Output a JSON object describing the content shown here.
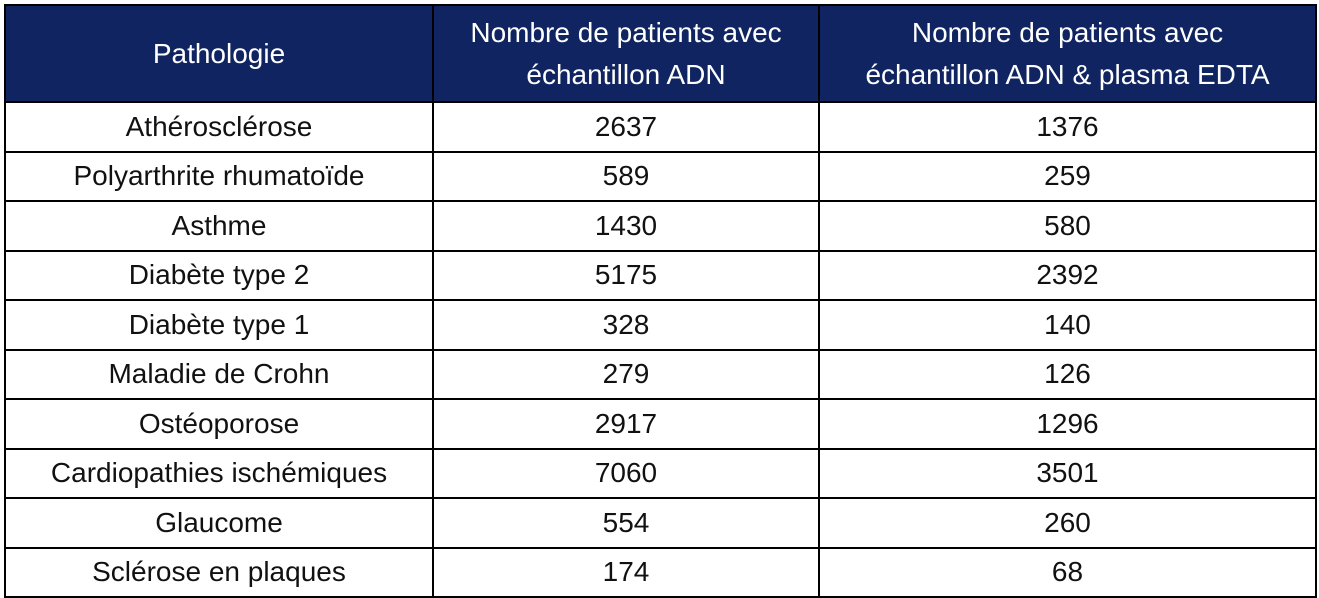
{
  "table": {
    "headers": [
      "Pathologie",
      "Nombre de patients avec échantillon ADN",
      "Nombre de patients avec échantillon ADN & plasma EDTA"
    ],
    "header_lines": {
      "col1": [
        "Pathologie"
      ],
      "col2": [
        "Nombre de patients avec",
        "échantillon ADN"
      ],
      "col3": [
        "Nombre de patients avec",
        "échantillon ADN & plasma EDTA"
      ]
    },
    "rows": [
      [
        "Athérosclérose",
        "2637",
        "1376"
      ],
      [
        "Polyarthrite rhumatoïde",
        "589",
        "259"
      ],
      [
        "Asthme",
        "1430",
        "580"
      ],
      [
        "Diabète type 2",
        "5175",
        "2392"
      ],
      [
        "Diabète type 1",
        "328",
        "140"
      ],
      [
        "Maladie de Crohn",
        "279",
        "126"
      ],
      [
        "Ostéoporose",
        "2917",
        "1296"
      ],
      [
        "Cardiopathies ischémiques",
        "7060",
        "3501"
      ],
      [
        "Glaucome",
        "554",
        "260"
      ],
      [
        "Sclérose en plaques",
        "174",
        "68"
      ]
    ]
  },
  "colors": {
    "header_background": "#0f2460",
    "header_text": "#ffffff",
    "border": "#000000"
  }
}
